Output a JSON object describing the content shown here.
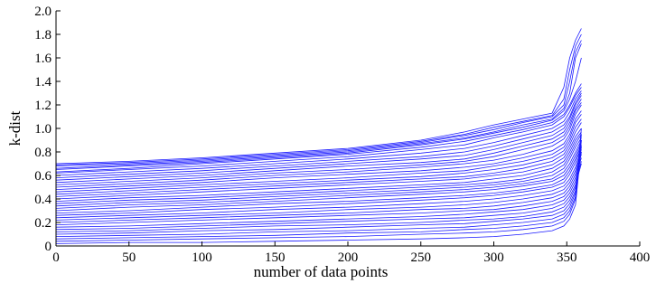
{
  "chart_data": {
    "type": "line",
    "title": "",
    "xlabel": "number of data points",
    "ylabel": "k-dist",
    "xlim": [
      0,
      400
    ],
    "ylim": [
      0,
      2.0
    ],
    "x_ticks": [
      0,
      50,
      100,
      150,
      200,
      250,
      300,
      350,
      400
    ],
    "x_tick_labels": [
      "0",
      "50",
      "100",
      "150",
      "200",
      "250",
      "300",
      "350",
      "400"
    ],
    "y_ticks": [
      0,
      0.2,
      0.4,
      0.6,
      0.8,
      1.0,
      1.2,
      1.4,
      1.6,
      1.8,
      2.0
    ],
    "y_tick_labels": [
      "0",
      "0.2",
      "0.4",
      "0.6",
      "0.8",
      "1.0",
      "1.2",
      "1.4",
      "1.6",
      "1.8",
      "2.0"
    ],
    "grid": false,
    "legend": "none",
    "line_color": "#1a1aff",
    "x": [
      0,
      50,
      100,
      150,
      200,
      250,
      280,
      300,
      320,
      340,
      348,
      352,
      356,
      360
    ],
    "series": [
      {
        "values": [
          0.7,
          0.72,
          0.75,
          0.79,
          0.83,
          0.9,
          0.97,
          1.03,
          1.08,
          1.13,
          1.35,
          1.6,
          1.75,
          1.85
        ]
      },
      {
        "values": [
          0.69,
          0.71,
          0.74,
          0.78,
          0.82,
          0.89,
          0.95,
          1.01,
          1.06,
          1.11,
          1.25,
          1.5,
          1.7,
          1.8
        ]
      },
      {
        "values": [
          0.68,
          0.7,
          0.73,
          0.77,
          0.81,
          0.88,
          0.94,
          0.99,
          1.05,
          1.1,
          1.2,
          1.4,
          1.65,
          1.75
        ]
      },
      {
        "values": [
          0.66,
          0.69,
          0.72,
          0.76,
          0.8,
          0.87,
          0.92,
          0.97,
          1.03,
          1.08,
          1.17,
          1.3,
          1.6,
          1.72
        ]
      },
      {
        "values": [
          0.65,
          0.68,
          0.71,
          0.75,
          0.79,
          0.86,
          0.91,
          0.96,
          1.01,
          1.07,
          1.15,
          1.25,
          1.4,
          1.6
        ]
      },
      {
        "values": [
          0.63,
          0.66,
          0.7,
          0.74,
          0.78,
          0.84,
          0.89,
          0.94,
          0.99,
          1.05,
          1.12,
          1.2,
          1.3,
          1.38
        ]
      },
      {
        "values": [
          0.62,
          0.65,
          0.68,
          0.72,
          0.76,
          0.82,
          0.86,
          0.92,
          0.97,
          1.03,
          1.1,
          1.18,
          1.28,
          1.35
        ]
      },
      {
        "values": [
          0.6,
          0.63,
          0.66,
          0.7,
          0.74,
          0.79,
          0.83,
          0.88,
          0.94,
          1.0,
          1.06,
          1.14,
          1.25,
          1.32
        ]
      },
      {
        "values": [
          0.58,
          0.61,
          0.64,
          0.68,
          0.72,
          0.76,
          0.8,
          0.85,
          0.91,
          0.97,
          1.03,
          1.1,
          1.22,
          1.3
        ]
      },
      {
        "values": [
          0.56,
          0.59,
          0.62,
          0.66,
          0.7,
          0.74,
          0.77,
          0.82,
          0.88,
          0.94,
          1.0,
          1.08,
          1.2,
          1.28
        ]
      },
      {
        "values": [
          0.54,
          0.57,
          0.6,
          0.64,
          0.68,
          0.71,
          0.74,
          0.79,
          0.85,
          0.91,
          0.97,
          1.05,
          1.17,
          1.25
        ]
      },
      {
        "values": [
          0.52,
          0.55,
          0.58,
          0.62,
          0.65,
          0.69,
          0.72,
          0.76,
          0.82,
          0.88,
          0.94,
          1.02,
          1.15,
          1.22
        ]
      },
      {
        "values": [
          0.5,
          0.53,
          0.56,
          0.6,
          0.63,
          0.67,
          0.7,
          0.73,
          0.78,
          0.85,
          0.91,
          0.99,
          1.12,
          1.2
        ]
      },
      {
        "values": [
          0.48,
          0.51,
          0.54,
          0.58,
          0.61,
          0.64,
          0.67,
          0.7,
          0.75,
          0.81,
          0.87,
          0.95,
          1.08,
          1.15
        ]
      },
      {
        "values": [
          0.46,
          0.49,
          0.52,
          0.55,
          0.58,
          0.62,
          0.64,
          0.68,
          0.72,
          0.78,
          0.84,
          0.92,
          1.05,
          1.12
        ]
      },
      {
        "values": [
          0.44,
          0.47,
          0.5,
          0.53,
          0.56,
          0.59,
          0.62,
          0.65,
          0.69,
          0.75,
          0.81,
          0.89,
          1.01,
          1.08
        ]
      },
      {
        "values": [
          0.42,
          0.45,
          0.48,
          0.51,
          0.54,
          0.57,
          0.59,
          0.62,
          0.66,
          0.72,
          0.78,
          0.86,
          0.97,
          1.05
        ]
      },
      {
        "values": [
          0.4,
          0.43,
          0.46,
          0.49,
          0.52,
          0.55,
          0.57,
          0.6,
          0.63,
          0.69,
          0.75,
          0.83,
          0.93,
          1.0
        ]
      },
      {
        "values": [
          0.38,
          0.41,
          0.43,
          0.46,
          0.49,
          0.52,
          0.54,
          0.57,
          0.6,
          0.66,
          0.72,
          0.8,
          0.9,
          0.97
        ]
      },
      {
        "values": [
          0.36,
          0.39,
          0.41,
          0.44,
          0.47,
          0.5,
          0.52,
          0.54,
          0.57,
          0.63,
          0.69,
          0.77,
          0.87,
          0.95
        ]
      },
      {
        "values": [
          0.34,
          0.37,
          0.39,
          0.42,
          0.45,
          0.48,
          0.5,
          0.52,
          0.55,
          0.6,
          0.66,
          0.74,
          0.84,
          0.92
        ]
      },
      {
        "values": [
          0.32,
          0.35,
          0.37,
          0.4,
          0.43,
          0.46,
          0.48,
          0.5,
          0.53,
          0.57,
          0.63,
          0.7,
          0.8,
          0.9
        ]
      },
      {
        "values": [
          0.3,
          0.33,
          0.35,
          0.38,
          0.41,
          0.44,
          0.46,
          0.48,
          0.51,
          0.55,
          0.6,
          0.67,
          0.77,
          0.88
        ]
      },
      {
        "values": [
          0.28,
          0.3,
          0.33,
          0.36,
          0.38,
          0.41,
          0.43,
          0.45,
          0.48,
          0.52,
          0.57,
          0.64,
          0.74,
          0.86
        ]
      },
      {
        "values": [
          0.26,
          0.28,
          0.31,
          0.33,
          0.36,
          0.39,
          0.41,
          0.43,
          0.46,
          0.5,
          0.54,
          0.61,
          0.71,
          0.84
        ]
      },
      {
        "values": [
          0.24,
          0.26,
          0.28,
          0.31,
          0.33,
          0.36,
          0.38,
          0.4,
          0.43,
          0.47,
          0.51,
          0.57,
          0.67,
          0.82
        ]
      },
      {
        "values": [
          0.22,
          0.24,
          0.26,
          0.28,
          0.31,
          0.33,
          0.35,
          0.37,
          0.4,
          0.44,
          0.48,
          0.54,
          0.64,
          0.8
        ]
      },
      {
        "values": [
          0.2,
          0.22,
          0.24,
          0.26,
          0.28,
          0.31,
          0.32,
          0.34,
          0.37,
          0.41,
          0.45,
          0.51,
          0.61,
          0.78
        ]
      },
      {
        "values": [
          0.18,
          0.2,
          0.22,
          0.24,
          0.26,
          0.28,
          0.3,
          0.31,
          0.34,
          0.38,
          0.42,
          0.48,
          0.58,
          0.75
        ]
      },
      {
        "values": [
          0.16,
          0.17,
          0.19,
          0.21,
          0.23,
          0.25,
          0.27,
          0.29,
          0.31,
          0.35,
          0.39,
          0.45,
          0.55,
          0.72
        ]
      },
      {
        "values": [
          0.14,
          0.15,
          0.17,
          0.19,
          0.21,
          0.23,
          0.24,
          0.26,
          0.28,
          0.32,
          0.36,
          0.42,
          0.52,
          0.7
        ]
      },
      {
        "values": [
          0.12,
          0.13,
          0.15,
          0.17,
          0.18,
          0.2,
          0.22,
          0.23,
          0.25,
          0.29,
          0.33,
          0.39,
          0.5,
          0.8
        ]
      },
      {
        "values": [
          0.1,
          0.11,
          0.13,
          0.14,
          0.16,
          0.18,
          0.19,
          0.21,
          0.23,
          0.26,
          0.3,
          0.36,
          0.47,
          0.9
        ]
      },
      {
        "values": [
          0.08,
          0.09,
          0.1,
          0.12,
          0.13,
          0.15,
          0.16,
          0.18,
          0.2,
          0.23,
          0.27,
          0.33,
          0.45,
          1.0
        ]
      },
      {
        "values": [
          0.06,
          0.07,
          0.08,
          0.09,
          0.11,
          0.12,
          0.14,
          0.15,
          0.17,
          0.2,
          0.24,
          0.3,
          0.42,
          0.95
        ]
      },
      {
        "values": [
          0.04,
          0.05,
          0.06,
          0.07,
          0.08,
          0.1,
          0.11,
          0.12,
          0.14,
          0.17,
          0.21,
          0.27,
          0.4,
          0.9
        ]
      },
      {
        "values": [
          0.02,
          0.03,
          0.03,
          0.04,
          0.05,
          0.06,
          0.07,
          0.08,
          0.1,
          0.13,
          0.17,
          0.23,
          0.35,
          0.85
        ]
      }
    ]
  }
}
